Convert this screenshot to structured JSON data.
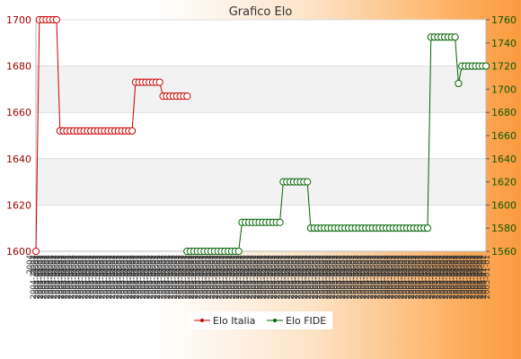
{
  "chart_data": {
    "type": "line",
    "title": "Grafico Elo",
    "xlabel": "",
    "ylabel": "",
    "left_axis": {
      "min": 1600,
      "max": 1700,
      "ticks": [
        1600,
        1620,
        1640,
        1660,
        1680,
        1700
      ],
      "color": "#cc0000"
    },
    "right_axis": {
      "min": 1560,
      "max": 1760,
      "ticks": [
        1560,
        1580,
        1600,
        1620,
        1640,
        1660,
        1680,
        1700,
        1720,
        1740,
        1760
      ],
      "color": "#006400"
    },
    "x_label_rows": [
      "2004",
      "2004-11-01",
      "2005-01-01"
    ],
    "grid": true,
    "legend_position": "bottom",
    "legend": [
      "Elo Italia",
      "Elo FIDE"
    ],
    "series": [
      {
        "name": "Elo Italia",
        "axis": "left",
        "color": "#cc0000",
        "values": [
          1600,
          1700,
          1700,
          1700,
          1700,
          1700,
          1700,
          1652,
          1652,
          1652,
          1652,
          1652,
          1652,
          1652,
          1652,
          1652,
          1652,
          1652,
          1652,
          1652,
          1652,
          1652,
          1652,
          1652,
          1652,
          1652,
          1652,
          1652,
          1652,
          1673,
          1673,
          1673,
          1673,
          1673,
          1673,
          1673,
          1673,
          1667,
          1667,
          1667,
          1667,
          1667,
          1667,
          1667,
          1667
        ]
      },
      {
        "name": "Elo FIDE",
        "axis": "right",
        "color": "#006400",
        "start_index": 44,
        "values": [
          1560,
          1560,
          1560,
          1560,
          1560,
          1560,
          1560,
          1560,
          1560,
          1560,
          1560,
          1560,
          1560,
          1560,
          1560,
          1560,
          1585,
          1585,
          1585,
          1585,
          1585,
          1585,
          1585,
          1585,
          1585,
          1585,
          1585,
          1585,
          1620,
          1620,
          1620,
          1620,
          1620,
          1620,
          1620,
          1620,
          1580,
          1580,
          1580,
          1580,
          1580,
          1580,
          1580,
          1580,
          1580,
          1580,
          1580,
          1580,
          1580,
          1580,
          1580,
          1580,
          1580,
          1580,
          1580,
          1580,
          1580,
          1580,
          1580,
          1580,
          1580,
          1580,
          1580,
          1580,
          1580,
          1580,
          1580,
          1580,
          1580,
          1580,
          1580,
          1745,
          1745,
          1745,
          1745,
          1745,
          1745,
          1745,
          1745,
          1705,
          1720,
          1720,
          1720,
          1720,
          1720,
          1720,
          1720,
          1720
        ]
      }
    ]
  }
}
